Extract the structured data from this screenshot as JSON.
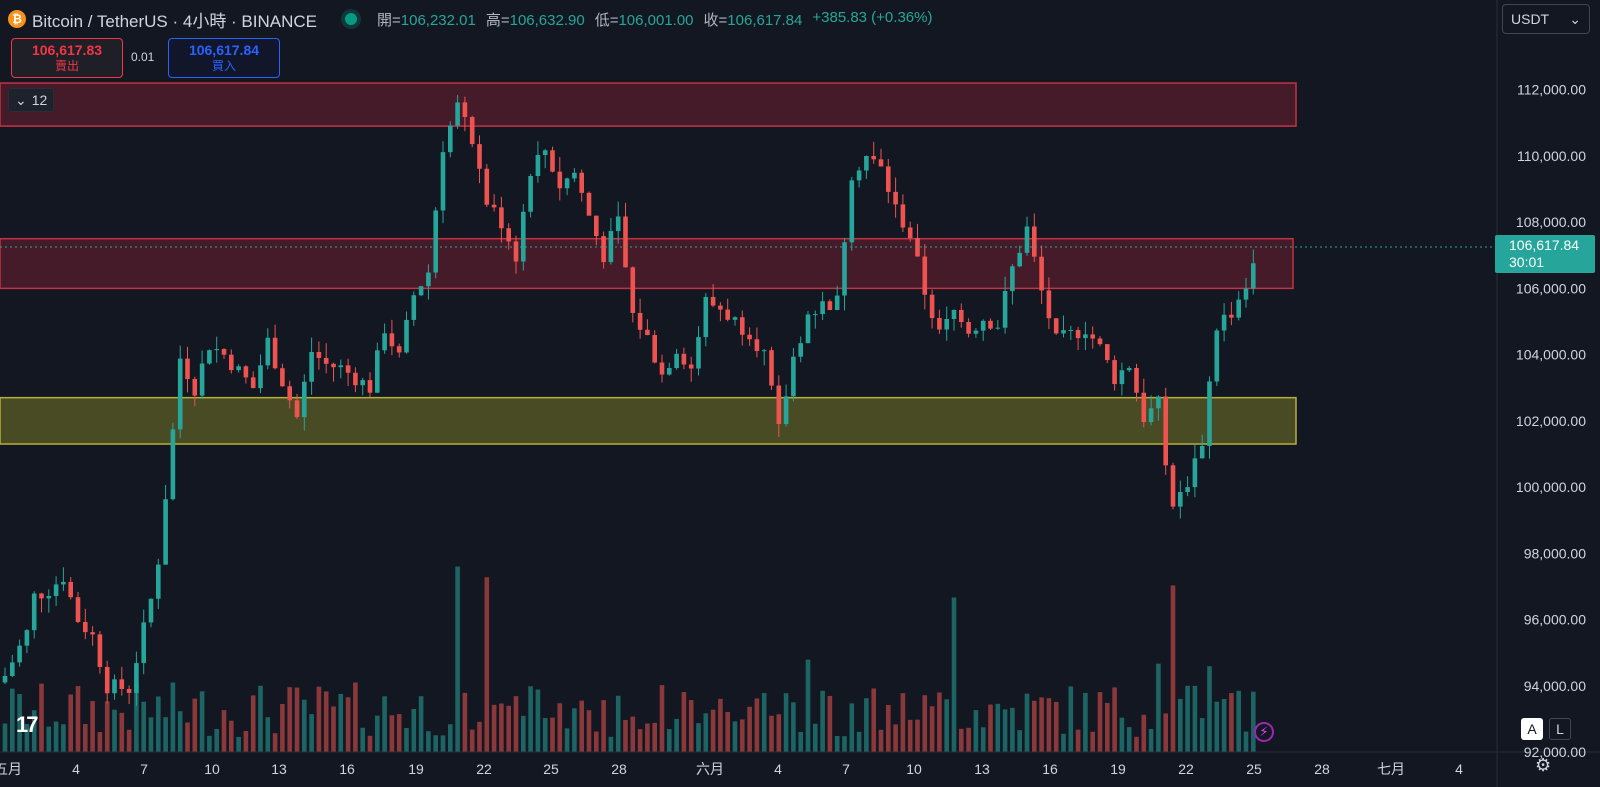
{
  "header": {
    "symbol_title": "Bitcoin / TetherUS · 4小時 · BINANCE",
    "btc_glyph": "₿",
    "ohlc": {
      "open_label": "開=",
      "open": "106,232.01",
      "high_label": "高=",
      "high": "106,632.90",
      "low_label": "低=",
      "low": "106,001.00",
      "close_label": "收=",
      "close": "106,617.84",
      "change": "+385.83 (+0.36%)"
    }
  },
  "trade": {
    "sell_price": "106,617.83",
    "sell_label": "賣出",
    "spread": "0.01",
    "buy_price": "106,617.84",
    "buy_label": "買入"
  },
  "interval_value": "12",
  "currency": "USDT",
  "last_price": {
    "price": "106,617.84",
    "countdown": "30:01"
  },
  "controls": {
    "a": "A",
    "l": "L",
    "logo": "17"
  },
  "colors": {
    "up": "#26a69a",
    "down": "#ef5350",
    "resistance_zone": "#7a1e2e",
    "support_zone": "#6b6a1e"
  },
  "chart_data": {
    "type": "candlestick",
    "symbol": "BTCUSDT",
    "interval": "4h",
    "y_axis": {
      "min": 92000,
      "max": 113500,
      "ticks": [
        112000,
        110000,
        108000,
        106000,
        104000,
        102000,
        100000,
        98000,
        96000,
        94000,
        92000
      ],
      "tick_labels": [
        "112,000.00",
        "110,000.00",
        "108,000.00",
        "106,000.00",
        "104,000.00",
        "102,000.00",
        "100,000.00",
        "98,000.00",
        "96,000.00",
        "94,000.00",
        "92,000.00"
      ]
    },
    "x_axis": {
      "labels": [
        "五月",
        "4",
        "7",
        "10",
        "13",
        "16",
        "19",
        "22",
        "25",
        "28",
        "六月",
        "4",
        "7",
        "10",
        "13",
        "16",
        "19",
        "22",
        "25",
        "28",
        "七月",
        "4"
      ]
    },
    "zones": [
      {
        "type": "resistance",
        "low": 110900,
        "high": 112200
      },
      {
        "type": "resistance",
        "low": 106000,
        "high": 107500
      },
      {
        "type": "support",
        "low": 101300,
        "high": 102700
      }
    ],
    "close_path": [
      [
        0,
        94300
      ],
      [
        3,
        95600
      ],
      [
        4,
        96700
      ],
      [
        6,
        96900
      ],
      [
        8,
        97300
      ],
      [
        10,
        96000
      ],
      [
        12,
        95500
      ],
      [
        14,
        94000
      ],
      [
        17,
        93900
      ],
      [
        18,
        94800
      ],
      [
        20,
        96600
      ],
      [
        21,
        97800
      ],
      [
        23,
        101700
      ],
      [
        24,
        103900
      ],
      [
        26,
        103000
      ],
      [
        28,
        104300
      ],
      [
        30,
        104000
      ],
      [
        32,
        103500
      ],
      [
        34,
        103000
      ],
      [
        36,
        104400
      ],
      [
        38,
        103200
      ],
      [
        40,
        102100
      ],
      [
        42,
        104100
      ],
      [
        44,
        103700
      ],
      [
        46,
        103600
      ],
      [
        48,
        103300
      ],
      [
        50,
        103000
      ],
      [
        52,
        104800
      ],
      [
        54,
        103900
      ],
      [
        56,
        105800
      ],
      [
        58,
        106500
      ],
      [
        60,
        110300
      ],
      [
        62,
        111500
      ],
      [
        64,
        110400
      ],
      [
        66,
        108600
      ],
      [
        68,
        108000
      ],
      [
        70,
        107000
      ],
      [
        72,
        109600
      ],
      [
        74,
        110200
      ],
      [
        76,
        109100
      ],
      [
        78,
        109500
      ],
      [
        80,
        108200
      ],
      [
        82,
        107000
      ],
      [
        84,
        108000
      ],
      [
        86,
        105200
      ],
      [
        88,
        104500
      ],
      [
        90,
        103400
      ],
      [
        92,
        104200
      ],
      [
        94,
        103600
      ],
      [
        96,
        105600
      ],
      [
        98,
        105400
      ],
      [
        100,
        105000
      ],
      [
        102,
        104700
      ],
      [
        104,
        104000
      ],
      [
        106,
        101700
      ],
      [
        108,
        103900
      ],
      [
        110,
        105200
      ],
      [
        112,
        105500
      ],
      [
        114,
        105600
      ],
      [
        116,
        109500
      ],
      [
        118,
        110000
      ],
      [
        120,
        109600
      ],
      [
        122,
        108400
      ],
      [
        124,
        107600
      ],
      [
        126,
        105900
      ],
      [
        128,
        104600
      ],
      [
        130,
        105300
      ],
      [
        132,
        104700
      ],
      [
        134,
        105100
      ],
      [
        136,
        104900
      ],
      [
        138,
        106600
      ],
      [
        140,
        107800
      ],
      [
        142,
        105900
      ],
      [
        144,
        104400
      ],
      [
        146,
        104600
      ],
      [
        148,
        104800
      ],
      [
        150,
        104200
      ],
      [
        152,
        103300
      ],
      [
        154,
        103700
      ],
      [
        156,
        102100
      ],
      [
        158,
        102500
      ],
      [
        160,
        99200
      ],
      [
        162,
        100200
      ],
      [
        164,
        101400
      ],
      [
        166,
        104900
      ],
      [
        168,
        105300
      ],
      [
        170,
        106100
      ],
      [
        171,
        106617.84
      ]
    ]
  }
}
